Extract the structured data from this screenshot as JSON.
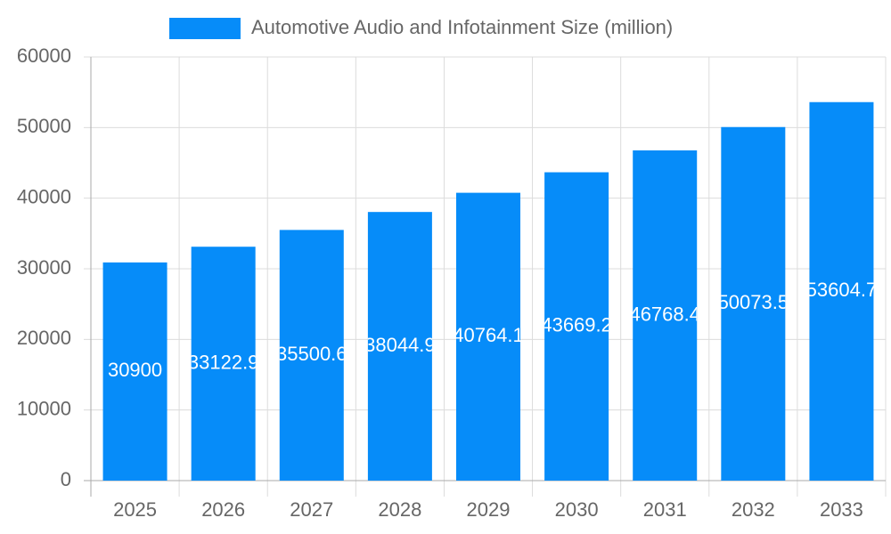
{
  "chart_data": {
    "type": "bar",
    "legend_label": "Automotive Audio and Infotainment Size (million)",
    "categories": [
      "2025",
      "2026",
      "2027",
      "2028",
      "2029",
      "2030",
      "2031",
      "2032",
      "2033"
    ],
    "values": [
      30900,
      33122.9,
      35500.6,
      38044.9,
      40764.1,
      43669.2,
      46768.4,
      50073.5,
      53604.7
    ],
    "color": "#068cf9",
    "ylim": [
      0,
      60000
    ],
    "yticks": [
      0,
      10000,
      20000,
      30000,
      40000,
      50000,
      60000
    ],
    "grid": true
  }
}
